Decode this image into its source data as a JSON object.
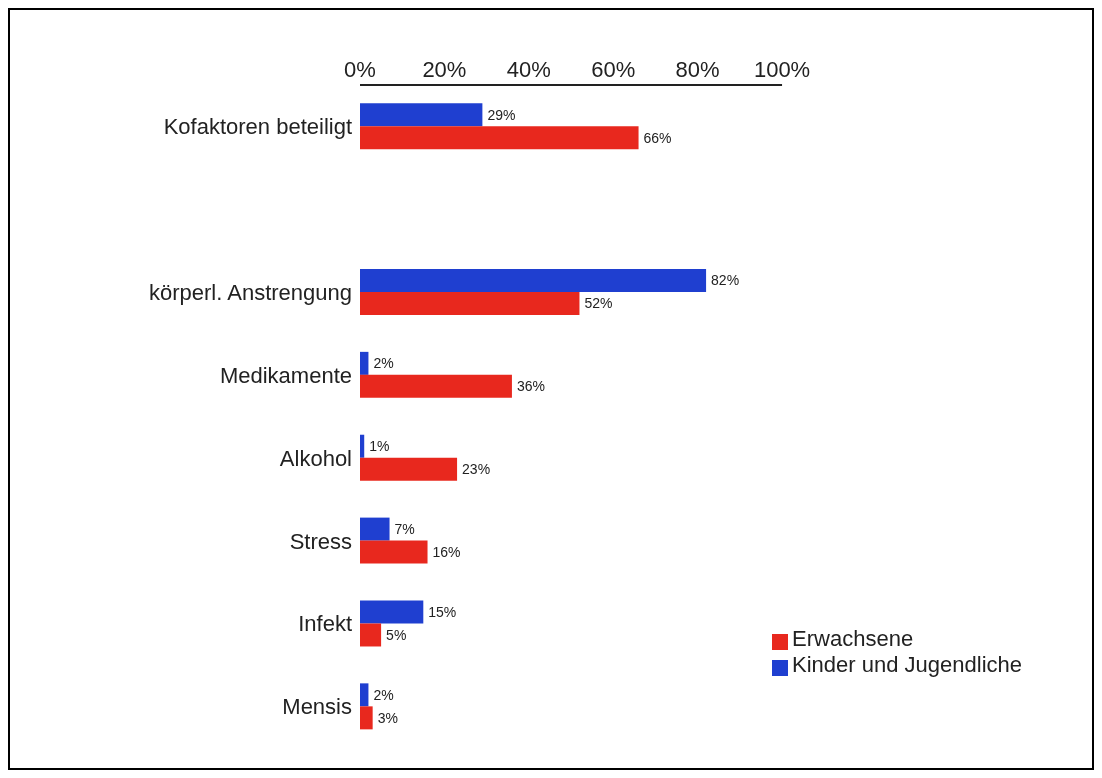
{
  "chart_data": {
    "type": "bar",
    "orientation": "horizontal",
    "categories": [
      "Kofaktoren beteiligt",
      null,
      "körperl. Anstrengung",
      "Medikamente",
      "Alkohol",
      "Stress",
      "Infekt",
      "Mensis"
    ],
    "series": [
      {
        "name": "Kinder und Jugendliche",
        "color": "#1f3fd0",
        "values": [
          29,
          null,
          82,
          2,
          1,
          7,
          15,
          2
        ],
        "value_labels": [
          "29%",
          null,
          "82%",
          "2%",
          "1%",
          "7%",
          "15%",
          "2%"
        ]
      },
      {
        "name": "Erwachsene",
        "color": "#e8281e",
        "values": [
          66,
          null,
          52,
          36,
          23,
          16,
          5,
          3
        ],
        "value_labels": [
          "66%",
          null,
          "52%",
          "36%",
          "23%",
          "16%",
          "5%",
          "3%"
        ]
      }
    ],
    "xlim": [
      0,
      100
    ],
    "xticks": [
      {
        "value": 0,
        "label": "0%"
      },
      {
        "value": 20,
        "label": "20%"
      },
      {
        "value": 40,
        "label": "40%"
      },
      {
        "value": 60,
        "label": "60%"
      },
      {
        "value": 80,
        "label": "80%"
      },
      {
        "value": 100,
        "label": "100%"
      }
    ],
    "grid": false,
    "legend": "bottom right"
  }
}
